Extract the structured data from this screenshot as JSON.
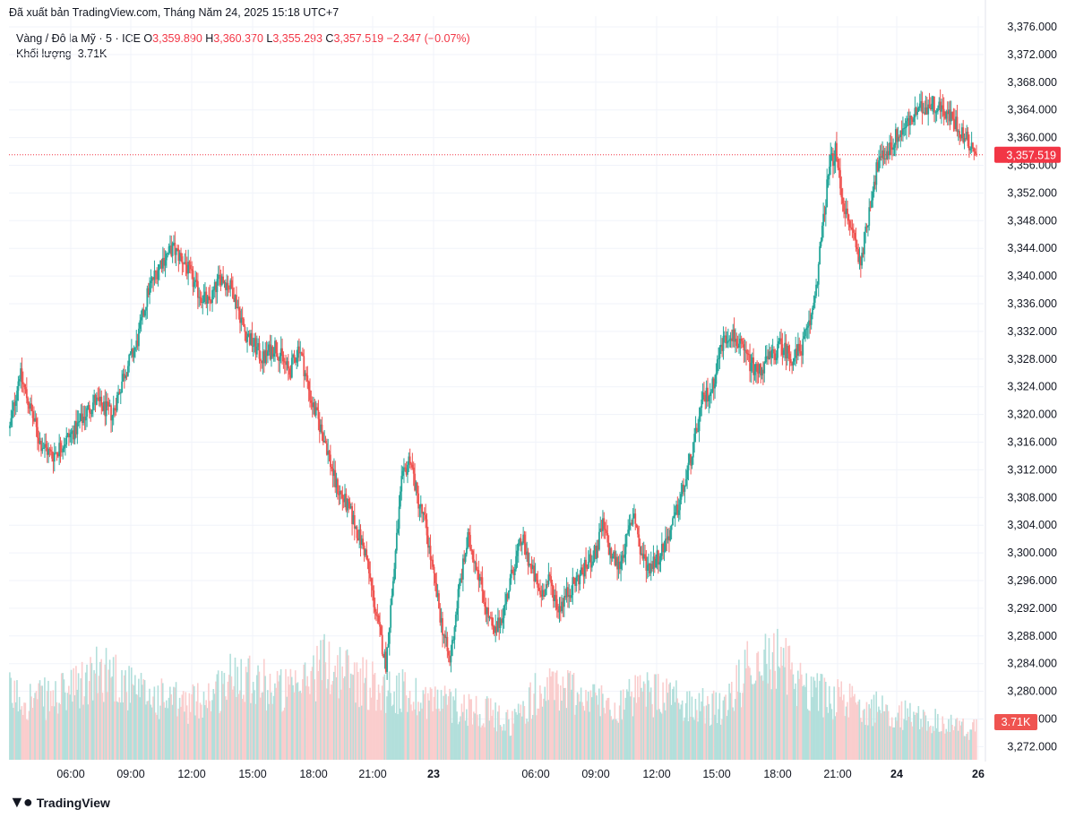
{
  "header": {
    "published": "Đã xuất bản TradingView.com, Tháng Năm 24, 2025 15:18 UTC+7"
  },
  "legend": {
    "symbol": "Vàng / Đô la Mỹ · 5 · ICE",
    "open_label": "O",
    "open": "3,359.890",
    "high_label": "H",
    "high": "3,360.370",
    "low_label": "L",
    "low": "3,355.293",
    "close_label": "C",
    "close": "3,357.519",
    "change": "−2.347 (−0.07%)",
    "volume_label": "Khối lượng",
    "volume": "3.71K"
  },
  "footer": {
    "brand": "TradingView",
    "logo_icon": "tradingview-logo-icon"
  },
  "colors": {
    "up": "#26a69a",
    "down": "#ef5350",
    "grid": "#f0f3fa",
    "price_line": "#f23645"
  },
  "chart_data": {
    "type": "candlestick",
    "interval": "5",
    "y_ticks": [
      "3,376.000",
      "3,372.000",
      "3,368.000",
      "3,364.000",
      "3,360.000",
      "3,356.000",
      "3,352.000",
      "3,348.000",
      "3,344.000",
      "3,340.000",
      "3,336.000",
      "3,332.000",
      "3,328.000",
      "3,324.000",
      "3,320.000",
      "3,316.000",
      "3,312.000",
      "3,308.000",
      "3,304.000",
      "3,300.000",
      "3,296.000",
      "3,292.000",
      "3,288.000",
      "3,284.000",
      "3,280.000",
      "3,276.000",
      "3,272.000"
    ],
    "ylim": [
      3270,
      3378
    ],
    "x_ticks": [
      {
        "label": "06:00",
        "bold": false
      },
      {
        "label": "09:00",
        "bold": false
      },
      {
        "label": "12:00",
        "bold": false
      },
      {
        "label": "15:00",
        "bold": false
      },
      {
        "label": "18:00",
        "bold": false
      },
      {
        "label": "21:00",
        "bold": false
      },
      {
        "label": "23",
        "bold": true
      },
      {
        "label": "06:00",
        "bold": false
      },
      {
        "label": "09:00",
        "bold": false
      },
      {
        "label": "12:00",
        "bold": false
      },
      {
        "label": "15:00",
        "bold": false
      },
      {
        "label": "18:00",
        "bold": false
      },
      {
        "label": "21:00",
        "bold": false
      },
      {
        "label": "24",
        "bold": true
      },
      {
        "label": "26",
        "bold": true
      }
    ],
    "price_path": [
      [
        0,
        3318
      ],
      [
        8,
        3326
      ],
      [
        15,
        3322
      ],
      [
        25,
        3316
      ],
      [
        35,
        3314
      ],
      [
        45,
        3316
      ],
      [
        55,
        3318
      ],
      [
        70,
        3322
      ],
      [
        85,
        3320
      ],
      [
        95,
        3326
      ],
      [
        105,
        3330
      ],
      [
        115,
        3338
      ],
      [
        125,
        3342
      ],
      [
        135,
        3344
      ],
      [
        145,
        3342
      ],
      [
        155,
        3338
      ],
      [
        165,
        3336
      ],
      [
        175,
        3340
      ],
      [
        185,
        3338
      ],
      [
        195,
        3332
      ],
      [
        210,
        3328
      ],
      [
        220,
        3330
      ],
      [
        232,
        3326
      ],
      [
        240,
        3330
      ],
      [
        250,
        3322
      ],
      [
        262,
        3316
      ],
      [
        270,
        3310
      ],
      [
        282,
        3306
      ],
      [
        295,
        3300
      ],
      [
        305,
        3290
      ],
      [
        312,
        3284
      ],
      [
        318,
        3296
      ],
      [
        325,
        3310
      ],
      [
        332,
        3314
      ],
      [
        338,
        3308
      ],
      [
        345,
        3304
      ],
      [
        352,
        3296
      ],
      [
        358,
        3290
      ],
      [
        365,
        3284
      ],
      [
        372,
        3294
      ],
      [
        380,
        3302
      ],
      [
        388,
        3298
      ],
      [
        395,
        3292
      ],
      [
        402,
        3288
      ],
      [
        410,
        3292
      ],
      [
        418,
        3298
      ],
      [
        425,
        3302
      ],
      [
        432,
        3298
      ],
      [
        440,
        3294
      ],
      [
        448,
        3296
      ],
      [
        455,
        3292
      ],
      [
        462,
        3294
      ],
      [
        470,
        3296
      ],
      [
        478,
        3298
      ],
      [
        486,
        3300
      ],
      [
        492,
        3304
      ],
      [
        498,
        3300
      ],
      [
        505,
        3298
      ],
      [
        512,
        3302
      ],
      [
        518,
        3306
      ],
      [
        523,
        3300
      ],
      [
        530,
        3298
      ],
      [
        540,
        3300
      ],
      [
        550,
        3304
      ],
      [
        560,
        3310
      ],
      [
        568,
        3316
      ],
      [
        575,
        3322
      ],
      [
        583,
        3324
      ],
      [
        590,
        3330
      ],
      [
        598,
        3332
      ],
      [
        605,
        3330
      ],
      [
        612,
        3328
      ],
      [
        620,
        3326
      ],
      [
        630,
        3328
      ],
      [
        640,
        3330
      ],
      [
        650,
        3328
      ],
      [
        658,
        3330
      ],
      [
        665,
        3334
      ],
      [
        670,
        3340
      ],
      [
        675,
        3348
      ],
      [
        680,
        3356
      ],
      [
        685,
        3358
      ],
      [
        690,
        3352
      ],
      [
        695,
        3348
      ],
      [
        700,
        3346
      ],
      [
        705,
        3342
      ],
      [
        710,
        3346
      ],
      [
        715,
        3352
      ],
      [
        720,
        3356
      ],
      [
        728,
        3358
      ],
      [
        735,
        3360
      ],
      [
        745,
        3362
      ],
      [
        755,
        3364
      ],
      [
        765,
        3365
      ],
      [
        775,
        3364
      ],
      [
        785,
        3362
      ],
      [
        792,
        3360
      ],
      [
        798,
        3359
      ],
      [
        802,
        3357.5
      ]
    ],
    "volume_profile": [
      [
        0,
        0.55
      ],
      [
        30,
        0.5
      ],
      [
        60,
        0.5
      ],
      [
        90,
        0.6
      ],
      [
        120,
        0.75
      ],
      [
        150,
        0.55
      ],
      [
        180,
        0.5
      ],
      [
        210,
        0.45
      ],
      [
        240,
        0.55
      ],
      [
        270,
        0.75
      ],
      [
        300,
        0.6
      ],
      [
        330,
        0.55
      ],
      [
        360,
        0.8
      ],
      [
        390,
        0.7
      ],
      [
        420,
        0.6
      ],
      [
        450,
        0.55
      ],
      [
        480,
        0.5
      ],
      [
        510,
        0.45
      ],
      [
        540,
        0.4
      ],
      [
        570,
        0.3
      ],
      [
        600,
        0.55
      ],
      [
        630,
        0.6
      ],
      [
        660,
        0.5
      ],
      [
        690,
        0.45
      ],
      [
        720,
        0.55
      ],
      [
        750,
        0.5
      ],
      [
        780,
        0.45
      ],
      [
        810,
        0.4
      ],
      [
        840,
        0.85
      ],
      [
        870,
        0.8
      ],
      [
        900,
        0.6
      ],
      [
        930,
        0.5
      ],
      [
        960,
        0.45
      ],
      [
        990,
        0.4
      ],
      [
        1020,
        0.35
      ],
      [
        1050,
        0.3
      ],
      [
        1080,
        0.25
      ]
    ],
    "current_price": "3,357.519",
    "current_volume": "3.71K"
  }
}
